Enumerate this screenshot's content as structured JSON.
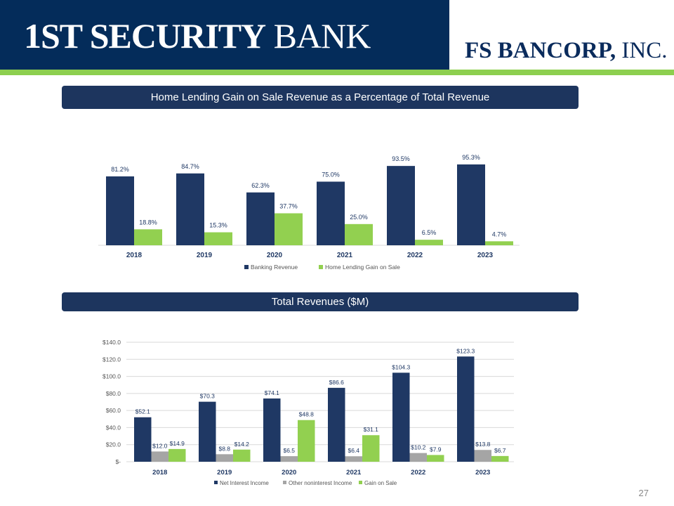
{
  "header": {
    "logo_left": "1ST SECURITY BANK",
    "logo_right": "FS BANCORP, INC."
  },
  "colors": {
    "navy": "#1f3864",
    "green": "#92d050",
    "gray": "#a5a5a5",
    "header_bg": "#042c5a",
    "accent_green": "#8dcf4f"
  },
  "page_number": "27",
  "chart_data": [
    {
      "type": "bar",
      "title": "Home Lending Gain on Sale Revenue as a Percentage of Total Revenue",
      "categories": [
        "2018",
        "2019",
        "2020",
        "2021",
        "2022",
        "2023"
      ],
      "series": [
        {
          "name": "Banking Revenue",
          "values": [
            81.2,
            84.7,
            62.3,
            75.0,
            93.5,
            95.3
          ],
          "labels": [
            "81.2%",
            "84.7%",
            "62.3%",
            "75.0%",
            "93.5%",
            "95.3%"
          ],
          "color": "#1f3864"
        },
        {
          "name": "Home Lending Gain on Sale",
          "values": [
            18.8,
            15.3,
            37.7,
            25.0,
            6.5,
            4.7
          ],
          "labels": [
            "18.8%",
            "15.3%",
            "37.7%",
            "25.0%",
            "6.5%",
            "4.7%"
          ],
          "color": "#92d050"
        }
      ],
      "unit": "%",
      "grid": false,
      "legend": "bottom"
    },
    {
      "type": "bar",
      "title": "Total Revenues ($M)",
      "categories": [
        "2018",
        "2019",
        "2020",
        "2021",
        "2022",
        "2023"
      ],
      "yticks": [
        "$-",
        "$20.0",
        "$40.0",
        "$60.0",
        "$80.0",
        "$100.0",
        "$120.0",
        "$140.0"
      ],
      "ylim": [
        0,
        140
      ],
      "series": [
        {
          "name": "Net Interest Income",
          "values": [
            52.1,
            70.3,
            74.1,
            86.6,
            104.3,
            123.3
          ],
          "labels": [
            "$52.1",
            "$70.3",
            "$74.1",
            "$86.6",
            "$104.3",
            "$123.3"
          ],
          "color": "#1f3864"
        },
        {
          "name": "Other noninterest Income",
          "values": [
            12.0,
            8.8,
            6.5,
            6.4,
            10.2,
            13.8
          ],
          "labels": [
            "$12.0",
            "$8.8",
            "$6.5",
            "$6.4",
            "$10.2",
            "$13.8"
          ],
          "color": "#a5a5a5"
        },
        {
          "name": "Gain on Sale",
          "values": [
            14.9,
            14.2,
            48.8,
            31.1,
            7.9,
            6.7
          ],
          "labels": [
            "$14.9",
            "$14.2",
            "$48.8",
            "$31.1",
            "$7.9",
            "$6.7"
          ],
          "color": "#92d050"
        }
      ],
      "grid": true,
      "legend": "bottom"
    }
  ]
}
